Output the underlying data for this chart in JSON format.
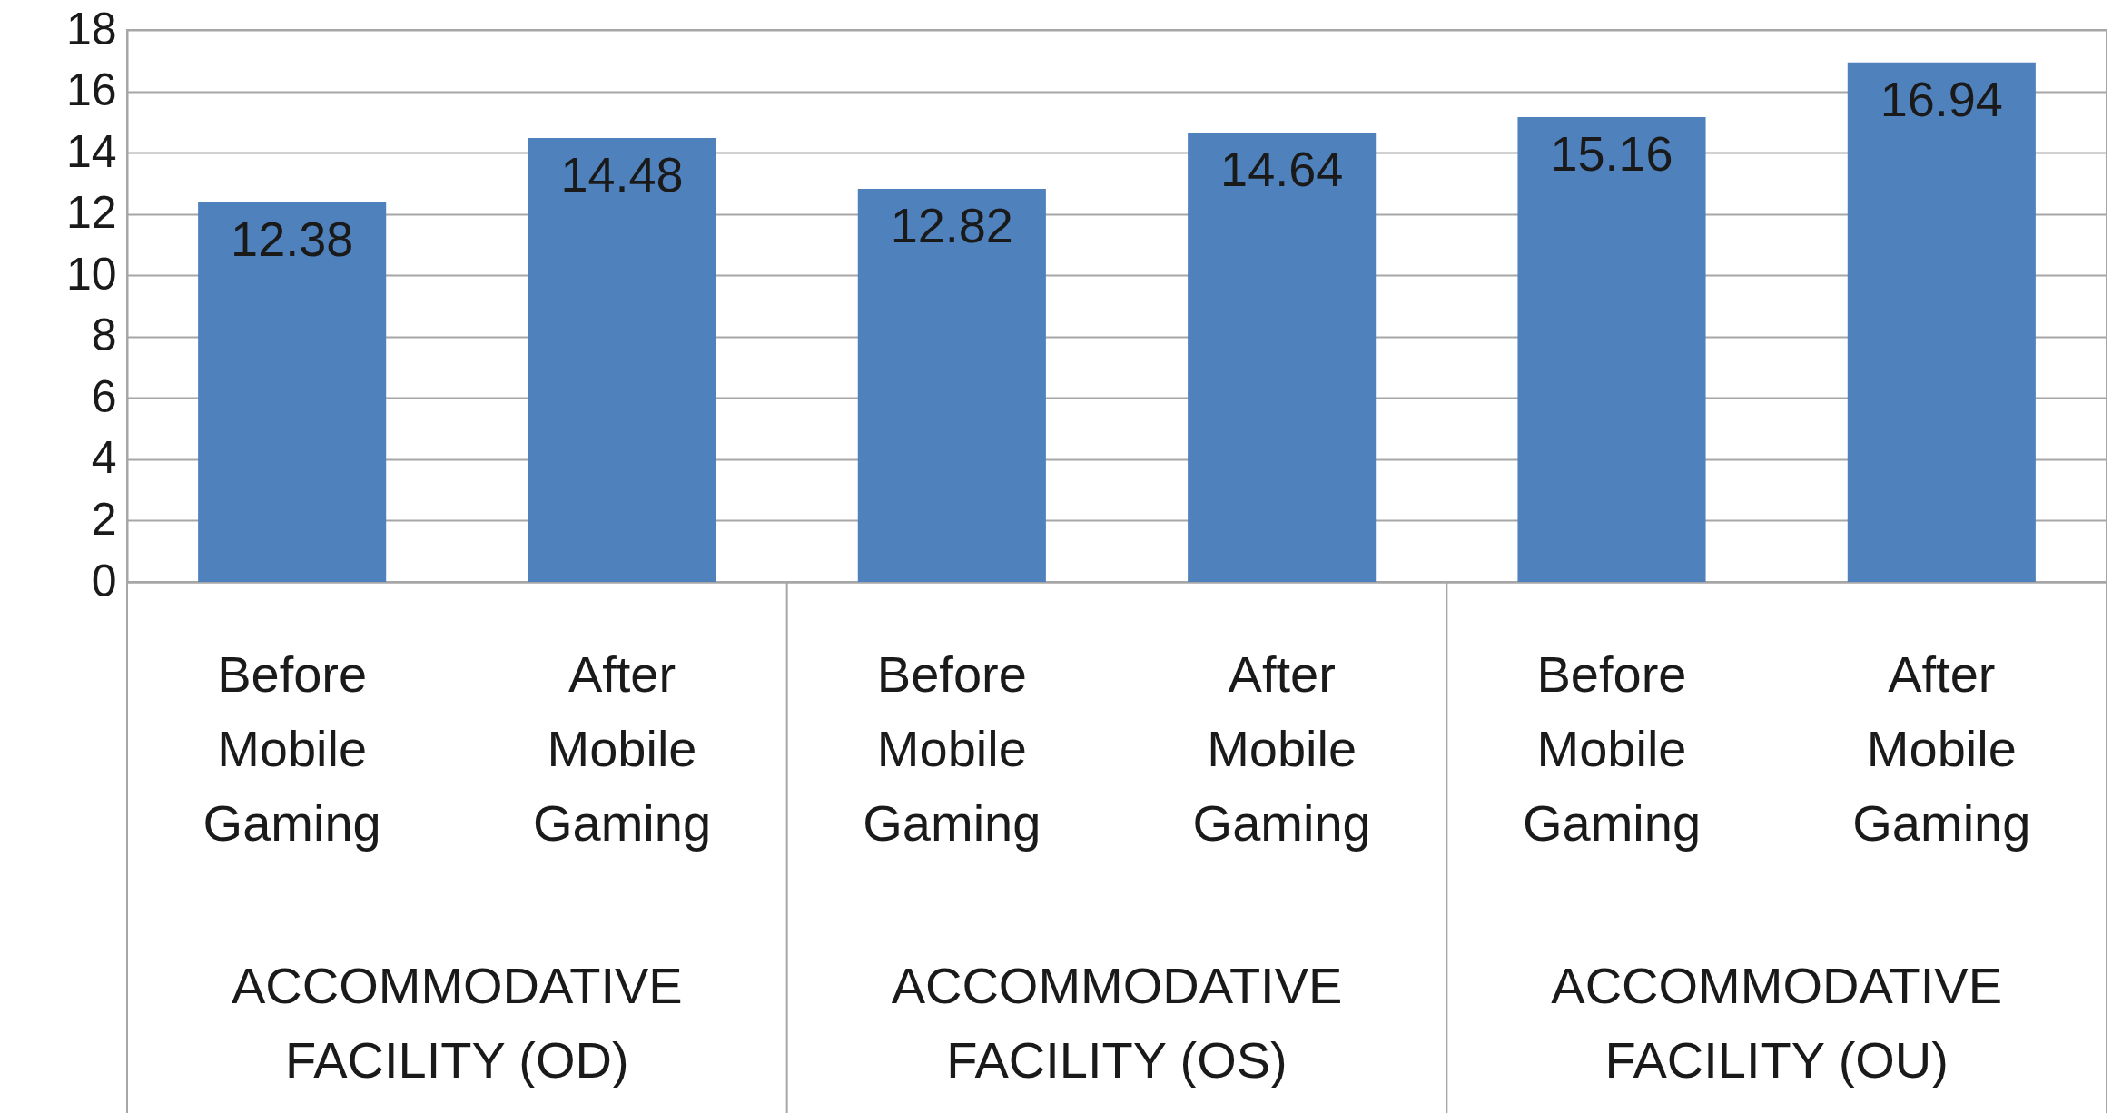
{
  "chart_data": {
    "type": "bar",
    "categories": [
      "Before Mobile Gaming",
      "After Mobile Gaming",
      "Before Mobile Gaming",
      "After Mobile Gaming",
      "Before Mobile Gaming",
      "After Mobile Gaming"
    ],
    "values": [
      12.38,
      14.48,
      12.82,
      14.64,
      15.16,
      16.94
    ],
    "color": "#4f81bd",
    "ylim": [
      0,
      18
    ],
    "yticks": [
      0,
      2,
      4,
      6,
      8,
      10,
      12,
      14,
      16,
      18
    ],
    "grid": "y",
    "data_labels": true,
    "annotations": [
      "ACCOMMODATIVE FACILITY (OD)",
      "ACCOMMODATIVE FACILITY (OS)",
      "ACCOMMODATIVE FACILITY (OU)"
    ]
  }
}
